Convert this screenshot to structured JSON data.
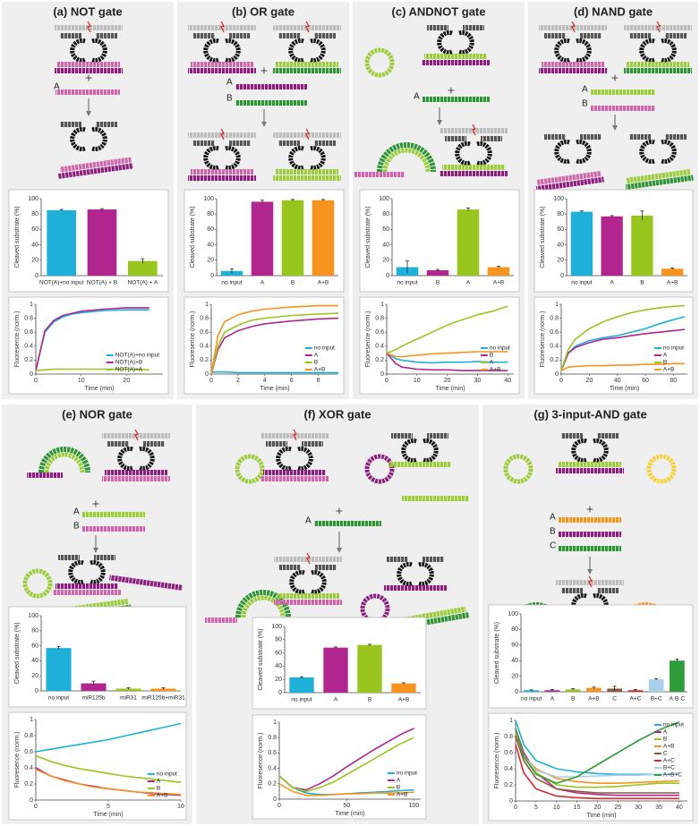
{
  "panels": [
    {
      "title": "(a)  NOT gate",
      "labels": [
        "A"
      ],
      "plus": "+"
    },
    {
      "title": "(b)  OR gate",
      "labels": [
        "A",
        "B"
      ],
      "plus": "+"
    },
    {
      "title": "(c)  ANDNOT gate",
      "labels": [
        "A"
      ],
      "plus": "+"
    },
    {
      "title": "(d)  NAND gate",
      "labels": [
        "A",
        "B"
      ],
      "plus": "+"
    },
    {
      "title": "(e)  NOR gate",
      "labels": [
        "A",
        "B"
      ],
      "plus": "+"
    },
    {
      "title": "(f)  XOR gate",
      "labels": [
        "A"
      ],
      "plus": "+"
    },
    {
      "title": "(g)  3-input-AND gate",
      "labels": [
        "A",
        "B",
        "C"
      ],
      "plus": "+"
    }
  ],
  "chart_data": [
    {
      "type": "bar",
      "ylabel": "Cleaved substrate (%)",
      "categories": [
        "NOT(A)+no input",
        "NOT(A) + B",
        "NOT(A) + A"
      ],
      "values": [
        85,
        86,
        19
      ],
      "errors": [
        1,
        1,
        3
      ],
      "colors": [
        "#1fb0da",
        "#b0258e",
        "#98c61e"
      ],
      "ylim": [
        0,
        100
      ],
      "yticks": [
        0,
        20,
        40,
        60,
        80,
        100
      ]
    },
    {
      "type": "line",
      "ylabel": "Fluoresence (norm.)",
      "xlabel": "Time (min)",
      "x": [
        0,
        2,
        4,
        6,
        8,
        10,
        15,
        20,
        25
      ],
      "series": [
        {
          "name": "NOT(A)+no input",
          "color": "#1fb0da",
          "values": [
            0.05,
            0.6,
            0.75,
            0.82,
            0.86,
            0.88,
            0.91,
            0.92,
            0.92
          ]
        },
        {
          "name": "NOT(A)+B",
          "color": "#b0258e",
          "values": [
            0.05,
            0.62,
            0.77,
            0.84,
            0.87,
            0.9,
            0.93,
            0.95,
            0.95
          ]
        },
        {
          "name": "NOT(A)+A",
          "color": "#98c61e",
          "values": [
            0.05,
            0.06,
            0.07,
            0.07,
            0.07,
            0.07,
            0.07,
            0.07,
            0.06
          ]
        }
      ],
      "xlim": [
        0,
        28
      ],
      "xticks": [
        0,
        10,
        20
      ],
      "ylim": [
        0,
        1
      ],
      "yticks": [
        0,
        0.2,
        0.4,
        0.6,
        0.8,
        1
      ],
      "legend": "lower right"
    },
    {
      "type": "bar",
      "ylabel": "Cleaved substrate (%)",
      "categories": [
        "no input",
        "A",
        "B",
        "A+B"
      ],
      "values": [
        6,
        96,
        98,
        98
      ],
      "errors": [
        3,
        2,
        1,
        1
      ],
      "colors": [
        "#1fb0da",
        "#b0258e",
        "#98c61e",
        "#f7931e"
      ],
      "ylim": [
        0,
        100
      ],
      "yticks": [
        0,
        20,
        40,
        60,
        80,
        100
      ]
    },
    {
      "type": "line",
      "ylabel": "Fluoresence (norm.)",
      "xlabel": "Time (min)",
      "x": [
        0,
        0.5,
        1,
        2,
        3,
        4,
        6,
        8,
        9.5
      ],
      "series": [
        {
          "name": "no input",
          "color": "#1fb0da",
          "values": [
            0.03,
            0.03,
            0.03,
            0.02,
            0.02,
            0.02,
            0.02,
            0.02,
            0.02
          ]
        },
        {
          "name": "A",
          "color": "#b0258e",
          "values": [
            0,
            0.35,
            0.52,
            0.62,
            0.68,
            0.72,
            0.76,
            0.79,
            0.8
          ]
        },
        {
          "name": "B",
          "color": "#98c61e",
          "values": [
            0,
            0.4,
            0.6,
            0.7,
            0.77,
            0.8,
            0.84,
            0.86,
            0.87
          ]
        },
        {
          "name": "A+B",
          "color": "#f7931e",
          "values": [
            0,
            0.55,
            0.75,
            0.85,
            0.9,
            0.93,
            0.96,
            0.98,
            0.98
          ]
        }
      ],
      "xlim": [
        0,
        9.5
      ],
      "xticks": [
        0,
        2,
        4,
        6,
        8
      ],
      "ylim": [
        0,
        1
      ],
      "yticks": [
        0,
        0.2,
        0.4,
        0.6,
        0.8,
        1
      ],
      "legend": "lower right"
    },
    {
      "type": "bar",
      "ylabel": "Cleaved substrate (%)",
      "categories": [
        "no input",
        "B",
        "A",
        "A+B"
      ],
      "values": [
        11,
        7,
        86,
        11
      ],
      "errors": [
        8,
        1,
        2,
        1
      ],
      "colors": [
        "#1fb0da",
        "#b0258e",
        "#98c61e",
        "#f7931e"
      ],
      "ylim": [
        0,
        100
      ],
      "yticks": [
        0,
        20,
        40,
        60,
        80,
        100
      ]
    },
    {
      "type": "line",
      "ylabel": "Fluoresence (norm.)",
      "xlabel": "Time (min)",
      "x": [
        0,
        3,
        5,
        10,
        15,
        20,
        25,
        30,
        35,
        40
      ],
      "series": [
        {
          "name": "no input",
          "color": "#1fb0da",
          "values": [
            0.3,
            0.22,
            0.2,
            0.17,
            0.16,
            0.17,
            0.17,
            0.18,
            0.17,
            0.17
          ]
        },
        {
          "name": "B",
          "color": "#b0258e",
          "values": [
            0.3,
            0.15,
            0.1,
            0.07,
            0.06,
            0.06,
            0.05,
            0.05,
            0.05,
            0.05
          ]
        },
        {
          "name": "A",
          "color": "#98c61e",
          "values": [
            0.3,
            0.35,
            0.4,
            0.5,
            0.6,
            0.7,
            0.78,
            0.85,
            0.9,
            0.97
          ]
        },
        {
          "name": "A+B",
          "color": "#f7931e",
          "values": [
            0.3,
            0.25,
            0.25,
            0.27,
            0.29,
            0.3,
            0.31,
            0.32,
            0.32,
            0.32
          ]
        }
      ],
      "xlim": [
        0,
        42
      ],
      "xticks": [
        0,
        10,
        20,
        30,
        40
      ],
      "ylim": [
        0,
        1
      ],
      "yticks": [
        0,
        0.2,
        0.4,
        0.6,
        0.8,
        1
      ],
      "legend": "lower right"
    },
    {
      "type": "bar",
      "ylabel": "Cleaved substrate (%)",
      "categories": [
        "no input",
        "A",
        "B",
        "A+B"
      ],
      "values": [
        83,
        77,
        78,
        9
      ],
      "errors": [
        1,
        1,
        6,
        1
      ],
      "colors": [
        "#1fb0da",
        "#b0258e",
        "#98c61e",
        "#f7931e"
      ],
      "ylim": [
        0,
        100
      ],
      "yticks": [
        0,
        20,
        40,
        60,
        80,
        100
      ]
    },
    {
      "type": "line",
      "ylabel": "Fluoresence (norm.)",
      "xlabel": "Time (min)",
      "x": [
        0,
        5,
        10,
        20,
        30,
        40,
        50,
        60,
        70,
        80,
        88
      ],
      "series": [
        {
          "name": "no input",
          "color": "#1fb0da",
          "values": [
            0.05,
            0.3,
            0.4,
            0.48,
            0.52,
            0.55,
            0.6,
            0.65,
            0.72,
            0.78,
            0.82
          ]
        },
        {
          "name": "A",
          "color": "#b0258e",
          "values": [
            0.05,
            0.3,
            0.38,
            0.45,
            0.5,
            0.52,
            0.55,
            0.58,
            0.6,
            0.62,
            0.64
          ]
        },
        {
          "name": "B",
          "color": "#98c61e",
          "values": [
            0.05,
            0.35,
            0.5,
            0.65,
            0.75,
            0.82,
            0.88,
            0.92,
            0.95,
            0.97,
            0.98
          ]
        },
        {
          "name": "A+B",
          "color": "#f7931e",
          "values": [
            0.05,
            0.1,
            0.11,
            0.12,
            0.12,
            0.13,
            0.13,
            0.14,
            0.14,
            0.15,
            0.15
          ]
        }
      ],
      "xlim": [
        0,
        90
      ],
      "xticks": [
        0,
        20,
        40,
        60,
        80
      ],
      "ylim": [
        0,
        1
      ],
      "yticks": [
        0,
        0.2,
        0.4,
        0.6,
        0.8,
        1
      ],
      "legend": "lower right"
    },
    {
      "type": "bar",
      "ylabel": "Cleaved substrate (%)",
      "categories": [
        "no input",
        "miR125b",
        "miR31",
        "miR125b+miR31"
      ],
      "values": [
        57,
        10,
        3,
        3
      ],
      "errors": [
        2,
        3,
        1,
        1
      ],
      "colors": [
        "#1fb0da",
        "#b0258e",
        "#98c61e",
        "#f7931e"
      ],
      "ylim": [
        0,
        100
      ],
      "yticks": [
        0,
        20,
        40,
        60,
        80,
        100
      ]
    },
    {
      "type": "line",
      "ylabel": "Fluoresence (norm.)",
      "xlabel": "Time (min)",
      "x": [
        0,
        1,
        2,
        3,
        4,
        5,
        6,
        7,
        8,
        9,
        10
      ],
      "series": [
        {
          "name": "no input",
          "color": "#1fb0da",
          "values": [
            0.6,
            0.63,
            0.66,
            0.69,
            0.72,
            0.75,
            0.79,
            0.83,
            0.87,
            0.91,
            0.95
          ]
        },
        {
          "name": "A",
          "color": "#b0258e",
          "values": [
            0.4,
            0.3,
            0.25,
            0.2,
            0.17,
            0.14,
            0.12,
            0.1,
            0.08,
            0.07,
            0.06
          ]
        },
        {
          "name": "B",
          "color": "#98c61e",
          "values": [
            0.55,
            0.48,
            0.43,
            0.39,
            0.36,
            0.33,
            0.3,
            0.28,
            0.26,
            0.24,
            0.22
          ]
        },
        {
          "name": "A+B",
          "color": "#f7931e",
          "values": [
            0.38,
            0.3,
            0.24,
            0.2,
            0.16,
            0.14,
            0.12,
            0.1,
            0.09,
            0.08,
            0.07
          ]
        }
      ],
      "xlim": [
        0,
        10
      ],
      "xticks": [
        0,
        5,
        10
      ],
      "ylim": [
        0,
        1
      ],
      "yticks": [
        0,
        0.2,
        0.4,
        0.6,
        0.8,
        1
      ],
      "legend": "lower right"
    },
    {
      "type": "bar",
      "ylabel": "Cleaved substrate (%)",
      "categories": [
        "no input",
        "A",
        "B",
        "A+B"
      ],
      "values": [
        23,
        68,
        72,
        14
      ],
      "errors": [
        1,
        1,
        1,
        1
      ],
      "colors": [
        "#1fb0da",
        "#b0258e",
        "#98c61e",
        "#f7931e"
      ],
      "ylim": [
        0,
        100
      ],
      "yticks": [
        0,
        20,
        40,
        60,
        80,
        100
      ]
    },
    {
      "type": "line",
      "ylabel": "Fluoresence (norm.)",
      "xlabel": "Time (min)",
      "x": [
        0,
        10,
        20,
        30,
        40,
        50,
        60,
        70,
        80,
        90,
        100
      ],
      "series": [
        {
          "name": "no input",
          "color": "#1fb0da",
          "values": [
            0.3,
            0.15,
            0.08,
            0.06,
            0.06,
            0.07,
            0.08,
            0.09,
            0.1,
            0.11,
            0.12
          ]
        },
        {
          "name": "A",
          "color": "#b0258e",
          "values": [
            0.3,
            0.15,
            0.12,
            0.2,
            0.3,
            0.42,
            0.53,
            0.64,
            0.74,
            0.84,
            0.92
          ]
        },
        {
          "name": "B",
          "color": "#98c61e",
          "values": [
            0.3,
            0.15,
            0.1,
            0.15,
            0.22,
            0.32,
            0.42,
            0.52,
            0.62,
            0.72,
            0.8
          ]
        },
        {
          "name": "A+B",
          "color": "#f7931e",
          "values": [
            0.2,
            0.1,
            0.05,
            0.05,
            0.06,
            0.07,
            0.07,
            0.08,
            0.08,
            0.08,
            0.09
          ]
        }
      ],
      "xlim": [
        0,
        105
      ],
      "xticks": [
        0,
        50,
        100
      ],
      "ylim": [
        0,
        1
      ],
      "yticks": [
        0,
        0.2,
        0.4,
        0.6,
        0.8,
        1
      ],
      "legend": "lower right"
    },
    {
      "type": "bar",
      "ylabel": "Cleaved substrate (%)",
      "categories": [
        "no input",
        "A",
        "B",
        "A+B",
        "C",
        "A+C",
        "B+C",
        "A·B·C"
      ],
      "values": [
        2,
        2,
        3,
        5,
        4,
        2,
        16,
        40
      ],
      "errors": [
        0.5,
        1,
        1,
        1,
        3,
        1,
        1,
        2
      ],
      "colors": [
        "#1fb0da",
        "#b0258e",
        "#98c61e",
        "#f7931e",
        "#8c5a3a",
        "#d42a2a",
        "#a8d0ea",
        "#2f9e3a"
      ],
      "ylim": [
        0,
        100
      ],
      "yticks": [
        0,
        20,
        40,
        60,
        80,
        100
      ]
    },
    {
      "type": "line",
      "ylabel": "Fluoresence (norm.)",
      "xlabel": "Time (min)",
      "x": [
        0,
        2,
        5,
        10,
        15,
        20,
        25,
        30,
        35,
        40
      ],
      "series": [
        {
          "name": "no input",
          "color": "#1fb0da",
          "values": [
            1,
            0.7,
            0.5,
            0.4,
            0.36,
            0.34,
            0.33,
            0.33,
            0.33,
            0.34
          ]
        },
        {
          "name": "A",
          "color": "#b0258e",
          "values": [
            0.9,
            0.6,
            0.35,
            0.15,
            0.1,
            0.08,
            0.07,
            0.07,
            0.07,
            0.07
          ]
        },
        {
          "name": "B",
          "color": "#98c61e",
          "values": [
            0.9,
            0.55,
            0.35,
            0.2,
            0.17,
            0.17,
            0.18,
            0.2,
            0.22,
            0.22
          ]
        },
        {
          "name": "A+B",
          "color": "#f7931e",
          "values": [
            0.85,
            0.55,
            0.4,
            0.28,
            0.24,
            0.22,
            0.22,
            0.23,
            0.24,
            0.25
          ]
        },
        {
          "name": "C",
          "color": "#8c5a3a",
          "values": [
            0.8,
            0.5,
            0.28,
            0.15,
            0.12,
            0.1,
            0.1,
            0.1,
            0.1,
            0.1
          ]
        },
        {
          "name": "A+C",
          "color": "#d42a2a",
          "values": [
            0.7,
            0.35,
            0.15,
            0.06,
            0.04,
            0.03,
            0.03,
            0.03,
            0.03,
            0.03
          ]
        },
        {
          "name": "B+C",
          "color": "#a8d0ea",
          "values": [
            0.9,
            0.55,
            0.38,
            0.3,
            0.3,
            0.31,
            0.32,
            0.32,
            0.33,
            0.34
          ]
        },
        {
          "name": "A+B+C",
          "color": "#2f9e3a",
          "values": [
            0.9,
            0.55,
            0.33,
            0.22,
            0.3,
            0.45,
            0.6,
            0.75,
            0.88,
            0.98
          ]
        }
      ],
      "xlim": [
        0,
        42
      ],
      "xticks": [
        0,
        5,
        10,
        15,
        20,
        25,
        30,
        35,
        40
      ],
      "ylim": [
        0,
        1
      ],
      "yticks": [
        0,
        0.2,
        0.4,
        0.6,
        0.8,
        1
      ],
      "legend": "upper right"
    }
  ]
}
